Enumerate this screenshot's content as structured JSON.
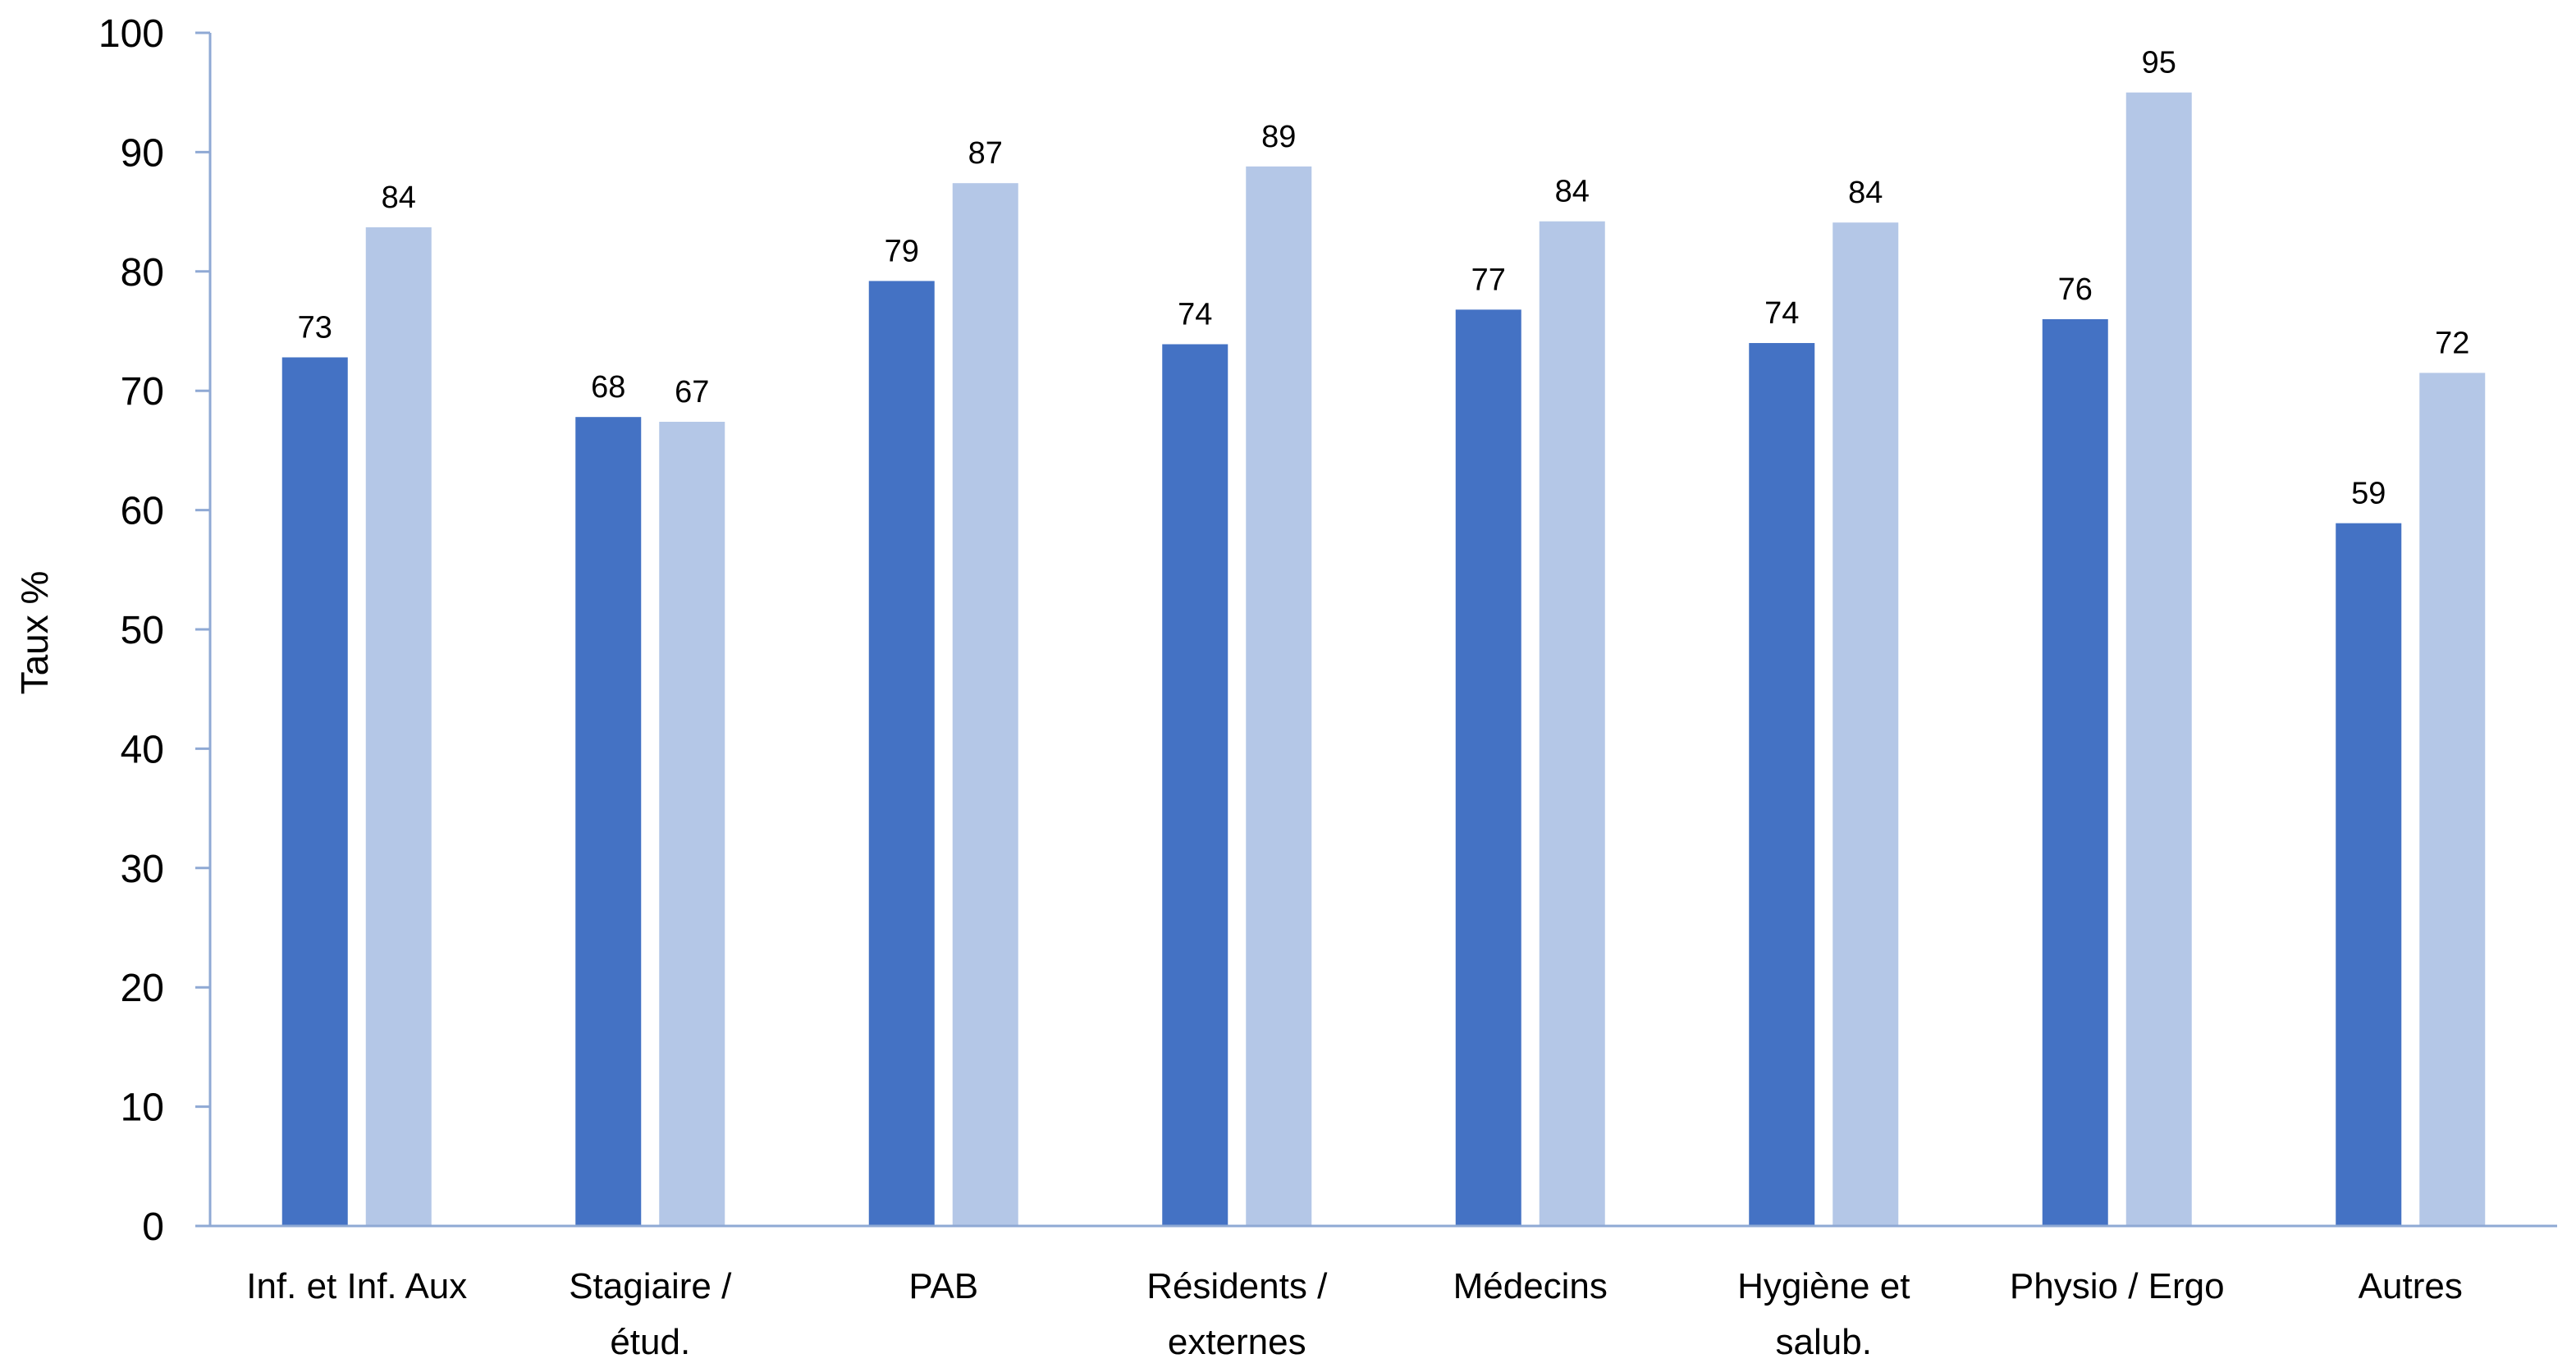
{
  "chart_data": {
    "type": "bar",
    "categories": [
      [
        "Inf. et Inf. Aux"
      ],
      [
        "Stagiaire /",
        "étud."
      ],
      [
        "PAB"
      ],
      [
        "Résidents /",
        "externes"
      ],
      [
        "Médecins"
      ],
      [
        "Hygiène et",
        "salub."
      ],
      [
        "Physio / Ergo"
      ],
      [
        "Autres"
      ]
    ],
    "series": [
      {
        "color": "#4472c4",
        "values": [
          72.8,
          67.8,
          79.2,
          73.9,
          76.8,
          74.0,
          76.0,
          58.9
        ],
        "labels": [
          "73",
          "68",
          "79",
          "74",
          "77",
          "74",
          "76",
          "59"
        ]
      },
      {
        "color": "#b4c7e7",
        "values": [
          83.7,
          67.4,
          87.4,
          88.8,
          84.2,
          84.1,
          95.0,
          71.5
        ],
        "labels": [
          "84",
          "67",
          "87",
          "89",
          "84",
          "84",
          "95",
          "72"
        ]
      }
    ],
    "ylabel": "Taux %",
    "xlabel": "",
    "title": "",
    "ylim": [
      0,
      100
    ],
    "yticks": [
      0,
      10,
      20,
      30,
      40,
      50,
      60,
      70,
      80,
      90,
      100
    ],
    "grid": false,
    "legend": "none"
  }
}
